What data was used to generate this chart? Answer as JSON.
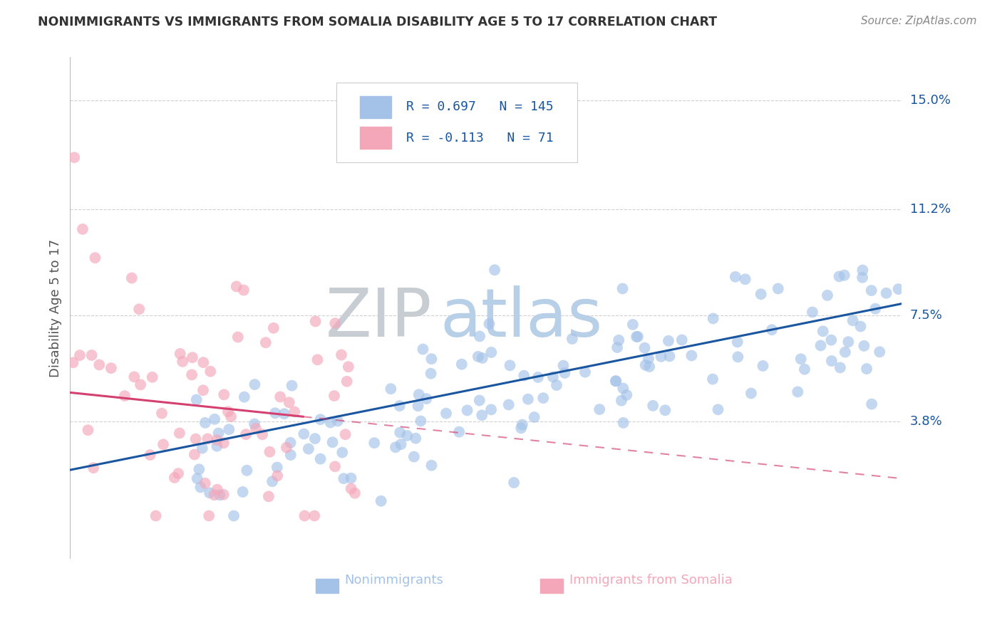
{
  "title": "NONIMMIGRANTS VS IMMIGRANTS FROM SOMALIA DISABILITY AGE 5 TO 17 CORRELATION CHART",
  "source_text": "Source: ZipAtlas.com",
  "ylabel": "Disability Age 5 to 17",
  "xlim": [
    0.0,
    100.0
  ],
  "ylim": [
    -1.0,
    16.5
  ],
  "yticks": [
    3.8,
    7.5,
    11.2,
    15.0
  ],
  "ytick_labels": [
    "3.8%",
    "7.5%",
    "11.2%",
    "15.0%"
  ],
  "nonimmigrant_R": 0.697,
  "nonimmigrant_N": 145,
  "immigrant_R": -0.113,
  "immigrant_N": 71,
  "blue_color": "#a4c2e8",
  "pink_color": "#f4a7b9",
  "blue_line_color": "#1a56a0",
  "pink_line_color": "#d44070",
  "watermark_zip_color": "#c8cdd4",
  "watermark_atlas_color": "#b8cfe8",
  "background_color": "#ffffff",
  "title_color": "#333333",
  "axis_label_color": "#555555",
  "tick_label_color": "#1a56a0",
  "grid_color": "#d0d0d0",
  "blue_seed": 12,
  "pink_seed": 7
}
